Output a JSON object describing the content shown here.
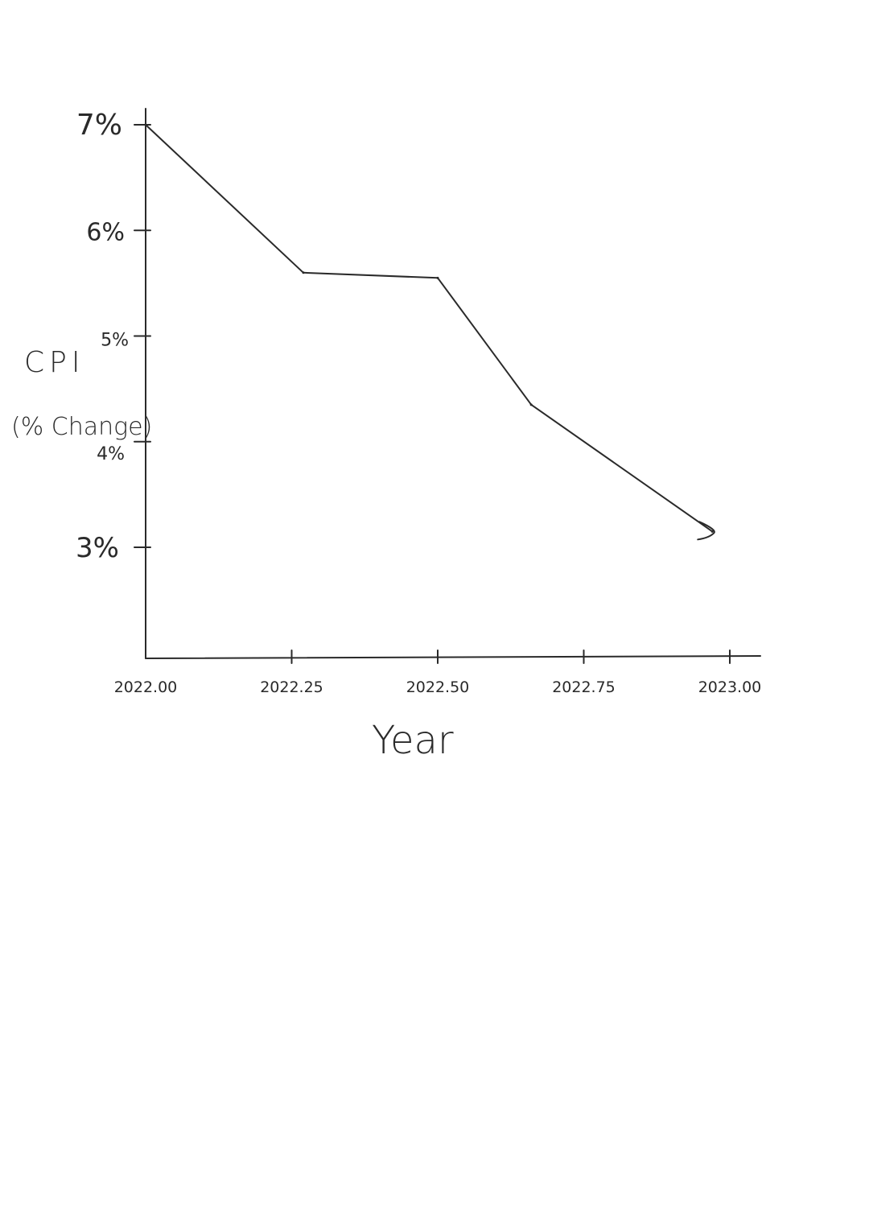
{
  "chart_data": {
    "type": "line",
    "xlabel": "Year",
    "ylabel": "CPI",
    "ylabel_sub": "(% Change)",
    "x_ticks": [
      {
        "value": 2022.0,
        "label": "2022.00"
      },
      {
        "value": 2022.25,
        "label": "2022.25"
      },
      {
        "value": 2022.5,
        "label": "2022.50"
      },
      {
        "value": 2022.75,
        "label": "2022.75"
      },
      {
        "value": 2023.0,
        "label": "2023.00"
      }
    ],
    "y_ticks": [
      {
        "value": 3,
        "label": "3%"
      },
      {
        "value": 4,
        "label": "4%"
      },
      {
        "value": 5,
        "label": "5%"
      },
      {
        "value": 6,
        "label": "6%"
      },
      {
        "value": 7,
        "label": "7%"
      }
    ],
    "xlim": [
      2022.0,
      2023.05
    ],
    "ylim": [
      2.0,
      7.15
    ],
    "series": [
      {
        "x": [
          2022.0,
          2022.27,
          2022.5,
          2022.66,
          2022.97
        ],
        "y": [
          7.0,
          5.6,
          5.55,
          4.35,
          3.15
        ]
      }
    ],
    "end_arrow": true,
    "grid": false
  }
}
